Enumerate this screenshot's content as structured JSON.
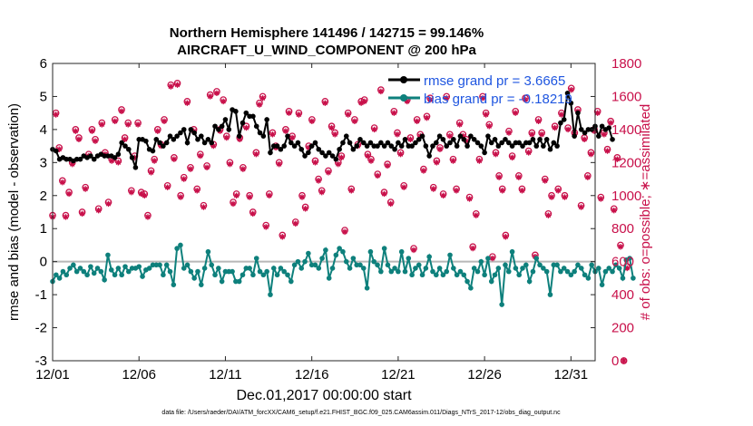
{
  "chart_data": {
    "type": "line",
    "title": [
      "Northern Hemisphere 141496 / 142715 = 99.146%",
      "AIRCRAFT_U_WIND_COMPONENT @ 200 hPa"
    ],
    "xlabel": "Dec.01,2017 00:00:00 start",
    "ylabel_left": "rmse and bias (model - observation)",
    "ylabel_right": "# of obs: o=possible; ∗=assimilated",
    "footer": "data file: /Users/raeder/DAI/ATM_forcXX/CAM6_setup/f.e21.FHIST_BGC.f09_025.CAM6assim.011/Diags_NTrS_2017-12/obs_diag_output.nc",
    "xlim": [
      0,
      31.4
    ],
    "ylim_left": [
      -3,
      6
    ],
    "ylim_right": [
      0,
      1800
    ],
    "x_ticks": [
      0,
      5,
      10,
      15,
      20,
      25,
      30
    ],
    "x_tick_labels": [
      "12/01",
      "12/06",
      "12/11",
      "12/16",
      "12/21",
      "12/26",
      "12/31"
    ],
    "y_left_ticks": [
      -3,
      -2,
      -1,
      0,
      1,
      2,
      3,
      4,
      5,
      6
    ],
    "y_right_ticks": [
      0,
      200,
      400,
      600,
      800,
      1000,
      1200,
      1400,
      1600,
      1800
    ],
    "legend": [
      {
        "name": "rmse grand pr = 3.6665",
        "color": "#000000"
      },
      {
        "name": "bias grand pr = -0.18219",
        "color": "#0e807c"
      }
    ],
    "colors": {
      "rmse": "#000000",
      "bias": "#0e807c",
      "obs": "#c8104a",
      "zero_line": "#b8b8b8"
    },
    "step_hours": 6,
    "series": [
      {
        "name": "rmse",
        "values": [
          3.4,
          3.35,
          3.1,
          3.15,
          3.1,
          3.1,
          3.05,
          3.1,
          3.1,
          3.2,
          3.15,
          3.2,
          3.1,
          3.2,
          3.25,
          3.2,
          3.2,
          3.2,
          3.15,
          3.25,
          3.6,
          3.5,
          3.4,
          3.15,
          2.85,
          3.7,
          3.7,
          3.65,
          3.4,
          3.35,
          3.7,
          3.6,
          3.5,
          3.6,
          3.8,
          3.7,
          3.8,
          3.9,
          4.0,
          3.6,
          4.0,
          3.9,
          3.7,
          3.8,
          3.6,
          3.7,
          3.6,
          4.1,
          4.0,
          4.1,
          4.3,
          4.0,
          4.6,
          4.55,
          3.8,
          4.2,
          4.5,
          4.4,
          4.4,
          4.1,
          3.9,
          3.8,
          4.3,
          3.3,
          3.5,
          3.5,
          3.4,
          3.5,
          3.8,
          3.6,
          3.5,
          3.6,
          3.4,
          3.2,
          3.3,
          3.5,
          3.6,
          3.4,
          3.3,
          3.2,
          3.3,
          3.2,
          3.1,
          3.4,
          3.6,
          3.8,
          3.6,
          3.4,
          3.5,
          3.7,
          3.6,
          3.5,
          3.6,
          3.5,
          3.5,
          3.6,
          3.5,
          3.6,
          3.5,
          3.4,
          3.6,
          3.5,
          3.7,
          3.5,
          3.5,
          3.6,
          3.7,
          3.8,
          3.5,
          3.2,
          3.5,
          3.6,
          3.8,
          3.7,
          3.5,
          3.6,
          3.7,
          3.5,
          3.8,
          3.7,
          3.5,
          3.8,
          3.7,
          3.6,
          3.5,
          3.3,
          3.8,
          3.6,
          3.7,
          3.5,
          3.6,
          3.7,
          3.6,
          3.5,
          3.6,
          3.6,
          3.5,
          3.6,
          3.6,
          3.7,
          3.5,
          3.7,
          3.5,
          3.7,
          3.4,
          3.6,
          3.5,
          4.2,
          4.3,
          5.1,
          4.8,
          3.8,
          4.5,
          4.0,
          3.9,
          4.0,
          4.0,
          4.1,
          3.8,
          4.1,
          4.0,
          4.05,
          3.7
        ],
        "x_start": 0.0,
        "x_step": 0.2
      },
      {
        "name": "bias",
        "values": [
          -0.6,
          -0.4,
          -0.5,
          -0.3,
          -0.4,
          -0.2,
          -0.1,
          -0.3,
          -0.2,
          -0.3,
          -0.4,
          -0.15,
          -0.35,
          -0.2,
          -0.3,
          -0.55,
          0.2,
          -0.25,
          -0.4,
          -0.2,
          -0.4,
          -0.15,
          -0.3,
          -0.2,
          -0.2,
          -0.15,
          -0.45,
          -0.25,
          -0.2,
          -0.1,
          -0.1,
          -0.1,
          -0.4,
          -0.1,
          -0.3,
          -0.7,
          0.4,
          0.5,
          -0.2,
          -0.1,
          -0.3,
          -0.5,
          -0.3,
          -0.7,
          -0.2,
          0.3,
          -0.1,
          -0.4,
          -0.2,
          -0.6,
          -0.3,
          -0.3,
          -0.3,
          -0.6,
          -0.6,
          -0.4,
          -0.2,
          -0.2,
          -0.4,
          0.1,
          -0.3,
          -0.4,
          -0.3,
          -1.0,
          -0.2,
          -0.4,
          -0.2,
          -0.3,
          -0.4,
          -0.6,
          -0.1,
          0.0,
          -0.2,
          0.0,
          0.25,
          -0.1,
          -0.1,
          -0.2,
          0.1,
          0.35,
          -0.5,
          -0.2,
          0.2,
          0.4,
          0.3,
          0.0,
          -0.2,
          0.1,
          -0.1,
          -0.1,
          -0.2,
          -0.8,
          0.3,
          0.0,
          -0.1,
          -0.3,
          0.4,
          -0.1,
          -0.3,
          -0.2,
          -0.3,
          0.3,
          -0.3,
          0.1,
          -0.4,
          -0.2,
          -0.1,
          -0.4,
          -0.2,
          0.15,
          -0.3,
          -0.4,
          -0.2,
          -0.4,
          -0.3,
          0.2,
          -0.2,
          -0.4,
          -0.3,
          -0.4,
          -0.6,
          -0.8,
          -0.2,
          -0.3,
          0.0,
          -0.4,
          0.1,
          -0.6,
          -0.4,
          -0.2,
          -1.3,
          -0.1,
          -0.3,
          0.3,
          -0.2,
          -0.4,
          -0.2,
          -0.1,
          -0.6,
          -0.3,
          0.1,
          -0.1,
          -0.2,
          -0.3,
          -1.0,
          -0.1,
          -0.1,
          -0.3,
          -0.2,
          -0.3,
          -0.4,
          -0.3,
          -0.1,
          -0.2,
          -0.4,
          -0.5,
          -0.1,
          -0.3,
          -0.2,
          -0.7,
          -0.3,
          -0.2,
          -0.3,
          -0.1,
          -0.2,
          -0.5,
          0.05,
          0.1,
          -0.5
        ],
        "x_start": 0.0,
        "x_step": 0.2
      },
      {
        "name": "obs possible",
        "values": [
          880,
          1500,
          1290,
          1090,
          880,
          1020,
          1200,
          1400,
          1350,
          900,
          1050,
          1250,
          1400,
          1340,
          920,
          1440,
          1260,
          960,
          1220,
          1460,
          1210,
          1520,
          1350,
          1440,
          1030,
          1240,
          1440,
          1020,
          1010,
          880,
          1150,
          1220,
          1400,
          1310,
          1460,
          1060,
          1670,
          1230,
          1680,
          1000,
          1110,
          1570,
          1170,
          1400,
          1040,
          1250,
          940,
          1180,
          1610,
          1310,
          1630,
          1400,
          1580,
          1360,
          1200,
          960,
          1010,
          1350,
          1170,
          1420,
          1000,
          900,
          1260,
          1560,
          1600,
          820,
          1010,
          1380,
          1300,
          1200,
          760,
          1400,
          1510,
          1360,
          840,
          1500,
          1000,
          930,
          1300,
          1460,
          1210,
          1100,
          1030,
          1570,
          1150,
          1420,
          1380,
          1200,
          1240,
          790,
          1500,
          1040,
          1460,
          1310,
          1570,
          1580,
          1250,
          1220,
          1410,
          1130,
          1640,
          1020,
          1190,
          960,
          1510,
          1380,
          1260,
          1060,
          1580,
          1350,
          680,
          1460,
          1370,
          1160,
          1480,
          1590,
          1050,
          1210,
          1290,
          1010,
          1600,
          1370,
          1220,
          1040,
          1440,
          1370,
          1340,
          990,
          690,
          890,
          1220,
          1600,
          1500,
          1430,
          630,
          1260,
          1120,
          1040,
          760,
          1390,
          1240,
          1510,
          1120,
          1040,
          1590,
          1270,
          1380,
          640,
          1460,
          1380,
          1100,
          890,
          1000,
          1420,
          1040,
          1500,
          1000,
          1410,
          1650,
          1380,
          1520,
          940,
          1350,
          1120,
          1260,
          1400,
          1510,
          990,
          1380,
          1280,
          1450,
          920,
          1230,
          700,
          0,
          570
        ],
        "x_start": 0.0,
        "x_step": 0.19
      },
      {
        "name": "obs assimilated",
        "values": [
          870,
          1490,
          1280,
          1080,
          870,
          1010,
          1190,
          1390,
          1340,
          890,
          1040,
          1240,
          1390,
          1330,
          910,
          1430,
          1250,
          950,
          1210,
          1450,
          1200,
          1510,
          1340,
          1430,
          1020,
          1230,
          1430,
          1010,
          1000,
          870,
          1140,
          1210,
          1390,
          1300,
          1450,
          1050,
          1660,
          1220,
          1670,
          990,
          1100,
          1560,
          1160,
          1390,
          1030,
          1240,
          930,
          1170,
          1600,
          1300,
          1620,
          1390,
          1570,
          1350,
          1190,
          950,
          1000,
          1340,
          1160,
          1410,
          990,
          890,
          1250,
          1550,
          1590,
          810,
          1000,
          1370,
          1290,
          1190,
          750,
          1390,
          1500,
          1350,
          830,
          1490,
          990,
          920,
          1290,
          1450,
          1200,
          1090,
          1020,
          1560,
          1140,
          1410,
          1370,
          1190,
          1230,
          780,
          1490,
          1030,
          1450,
          1300,
          1560,
          1570,
          1240,
          1210,
          1400,
          1120,
          1630,
          1010,
          1180,
          950,
          1500,
          1370,
          1250,
          1050,
          1570,
          1340,
          670,
          1450,
          1360,
          1150,
          1470,
          1580,
          1040,
          1200,
          1280,
          1000,
          1590,
          1360,
          1210,
          1030,
          1430,
          1360,
          1330,
          980,
          680,
          880,
          1210,
          1590,
          1490,
          1420,
          620,
          1250,
          1110,
          1030,
          750,
          1380,
          1230,
          1500,
          1110,
          1030,
          1580,
          1260,
          1370,
          630,
          1450,
          1370,
          1090,
          880,
          990,
          1410,
          1030,
          1490,
          990,
          1400,
          1640,
          1370,
          1510,
          930,
          1340,
          1110,
          1250,
          1390,
          1500,
          980,
          1370,
          1270,
          1440,
          910,
          1220,
          690,
          0,
          560
        ],
        "x_start": 0.0,
        "x_step": 0.19
      }
    ]
  }
}
